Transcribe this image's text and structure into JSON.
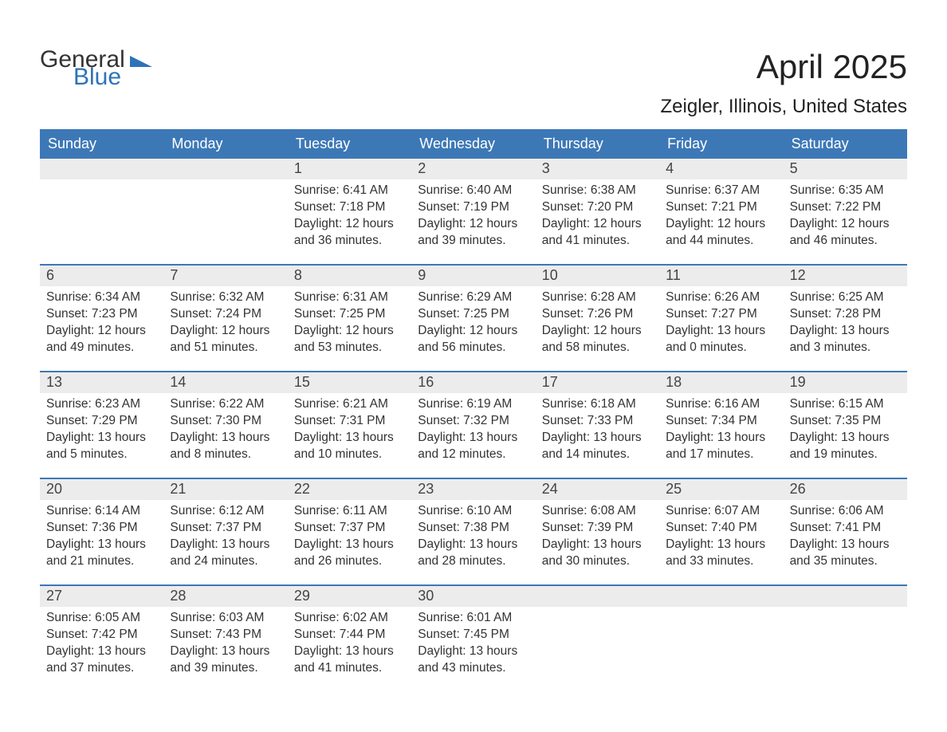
{
  "brand": {
    "part1": "General",
    "part2": "Blue"
  },
  "title": "April 2025",
  "subtitle": "Zeigler, Illinois, United States",
  "colors": {
    "header_bg": "#3d78b6",
    "header_text": "#ffffff",
    "band_bg": "#ececec",
    "rule": "#3d78b6",
    "logo_blue": "#2d73b9",
    "text": "#333333",
    "page_bg": "#ffffff"
  },
  "typography": {
    "title_fontsize": 42,
    "subtitle_fontsize": 24,
    "header_fontsize": 18,
    "date_fontsize": 18,
    "body_fontsize": 15.5,
    "font_family": "Arial"
  },
  "layout": {
    "columns": 7,
    "weeks": 5,
    "start_day_index": 2,
    "days_in_month": 30
  },
  "day_names": [
    "Sunday",
    "Monday",
    "Tuesday",
    "Wednesday",
    "Thursday",
    "Friday",
    "Saturday"
  ],
  "days": {
    "1": {
      "sunrise": "Sunrise: 6:41 AM",
      "sunset": "Sunset: 7:18 PM",
      "daylight1": "Daylight: 12 hours",
      "daylight2": "and 36 minutes."
    },
    "2": {
      "sunrise": "Sunrise: 6:40 AM",
      "sunset": "Sunset: 7:19 PM",
      "daylight1": "Daylight: 12 hours",
      "daylight2": "and 39 minutes."
    },
    "3": {
      "sunrise": "Sunrise: 6:38 AM",
      "sunset": "Sunset: 7:20 PM",
      "daylight1": "Daylight: 12 hours",
      "daylight2": "and 41 minutes."
    },
    "4": {
      "sunrise": "Sunrise: 6:37 AM",
      "sunset": "Sunset: 7:21 PM",
      "daylight1": "Daylight: 12 hours",
      "daylight2": "and 44 minutes."
    },
    "5": {
      "sunrise": "Sunrise: 6:35 AM",
      "sunset": "Sunset: 7:22 PM",
      "daylight1": "Daylight: 12 hours",
      "daylight2": "and 46 minutes."
    },
    "6": {
      "sunrise": "Sunrise: 6:34 AM",
      "sunset": "Sunset: 7:23 PM",
      "daylight1": "Daylight: 12 hours",
      "daylight2": "and 49 minutes."
    },
    "7": {
      "sunrise": "Sunrise: 6:32 AM",
      "sunset": "Sunset: 7:24 PM",
      "daylight1": "Daylight: 12 hours",
      "daylight2": "and 51 minutes."
    },
    "8": {
      "sunrise": "Sunrise: 6:31 AM",
      "sunset": "Sunset: 7:25 PM",
      "daylight1": "Daylight: 12 hours",
      "daylight2": "and 53 minutes."
    },
    "9": {
      "sunrise": "Sunrise: 6:29 AM",
      "sunset": "Sunset: 7:25 PM",
      "daylight1": "Daylight: 12 hours",
      "daylight2": "and 56 minutes."
    },
    "10": {
      "sunrise": "Sunrise: 6:28 AM",
      "sunset": "Sunset: 7:26 PM",
      "daylight1": "Daylight: 12 hours",
      "daylight2": "and 58 minutes."
    },
    "11": {
      "sunrise": "Sunrise: 6:26 AM",
      "sunset": "Sunset: 7:27 PM",
      "daylight1": "Daylight: 13 hours",
      "daylight2": "and 0 minutes."
    },
    "12": {
      "sunrise": "Sunrise: 6:25 AM",
      "sunset": "Sunset: 7:28 PM",
      "daylight1": "Daylight: 13 hours",
      "daylight2": "and 3 minutes."
    },
    "13": {
      "sunrise": "Sunrise: 6:23 AM",
      "sunset": "Sunset: 7:29 PM",
      "daylight1": "Daylight: 13 hours",
      "daylight2": "and 5 minutes."
    },
    "14": {
      "sunrise": "Sunrise: 6:22 AM",
      "sunset": "Sunset: 7:30 PM",
      "daylight1": "Daylight: 13 hours",
      "daylight2": "and 8 minutes."
    },
    "15": {
      "sunrise": "Sunrise: 6:21 AM",
      "sunset": "Sunset: 7:31 PM",
      "daylight1": "Daylight: 13 hours",
      "daylight2": "and 10 minutes."
    },
    "16": {
      "sunrise": "Sunrise: 6:19 AM",
      "sunset": "Sunset: 7:32 PM",
      "daylight1": "Daylight: 13 hours",
      "daylight2": "and 12 minutes."
    },
    "17": {
      "sunrise": "Sunrise: 6:18 AM",
      "sunset": "Sunset: 7:33 PM",
      "daylight1": "Daylight: 13 hours",
      "daylight2": "and 14 minutes."
    },
    "18": {
      "sunrise": "Sunrise: 6:16 AM",
      "sunset": "Sunset: 7:34 PM",
      "daylight1": "Daylight: 13 hours",
      "daylight2": "and 17 minutes."
    },
    "19": {
      "sunrise": "Sunrise: 6:15 AM",
      "sunset": "Sunset: 7:35 PM",
      "daylight1": "Daylight: 13 hours",
      "daylight2": "and 19 minutes."
    },
    "20": {
      "sunrise": "Sunrise: 6:14 AM",
      "sunset": "Sunset: 7:36 PM",
      "daylight1": "Daylight: 13 hours",
      "daylight2": "and 21 minutes."
    },
    "21": {
      "sunrise": "Sunrise: 6:12 AM",
      "sunset": "Sunset: 7:37 PM",
      "daylight1": "Daylight: 13 hours",
      "daylight2": "and 24 minutes."
    },
    "22": {
      "sunrise": "Sunrise: 6:11 AM",
      "sunset": "Sunset: 7:37 PM",
      "daylight1": "Daylight: 13 hours",
      "daylight2": "and 26 minutes."
    },
    "23": {
      "sunrise": "Sunrise: 6:10 AM",
      "sunset": "Sunset: 7:38 PM",
      "daylight1": "Daylight: 13 hours",
      "daylight2": "and 28 minutes."
    },
    "24": {
      "sunrise": "Sunrise: 6:08 AM",
      "sunset": "Sunset: 7:39 PM",
      "daylight1": "Daylight: 13 hours",
      "daylight2": "and 30 minutes."
    },
    "25": {
      "sunrise": "Sunrise: 6:07 AM",
      "sunset": "Sunset: 7:40 PM",
      "daylight1": "Daylight: 13 hours",
      "daylight2": "and 33 minutes."
    },
    "26": {
      "sunrise": "Sunrise: 6:06 AM",
      "sunset": "Sunset: 7:41 PM",
      "daylight1": "Daylight: 13 hours",
      "daylight2": "and 35 minutes."
    },
    "27": {
      "sunrise": "Sunrise: 6:05 AM",
      "sunset": "Sunset: 7:42 PM",
      "daylight1": "Daylight: 13 hours",
      "daylight2": "and 37 minutes."
    },
    "28": {
      "sunrise": "Sunrise: 6:03 AM",
      "sunset": "Sunset: 7:43 PM",
      "daylight1": "Daylight: 13 hours",
      "daylight2": "and 39 minutes."
    },
    "29": {
      "sunrise": "Sunrise: 6:02 AM",
      "sunset": "Sunset: 7:44 PM",
      "daylight1": "Daylight: 13 hours",
      "daylight2": "and 41 minutes."
    },
    "30": {
      "sunrise": "Sunrise: 6:01 AM",
      "sunset": "Sunset: 7:45 PM",
      "daylight1": "Daylight: 13 hours",
      "daylight2": "and 43 minutes."
    }
  }
}
